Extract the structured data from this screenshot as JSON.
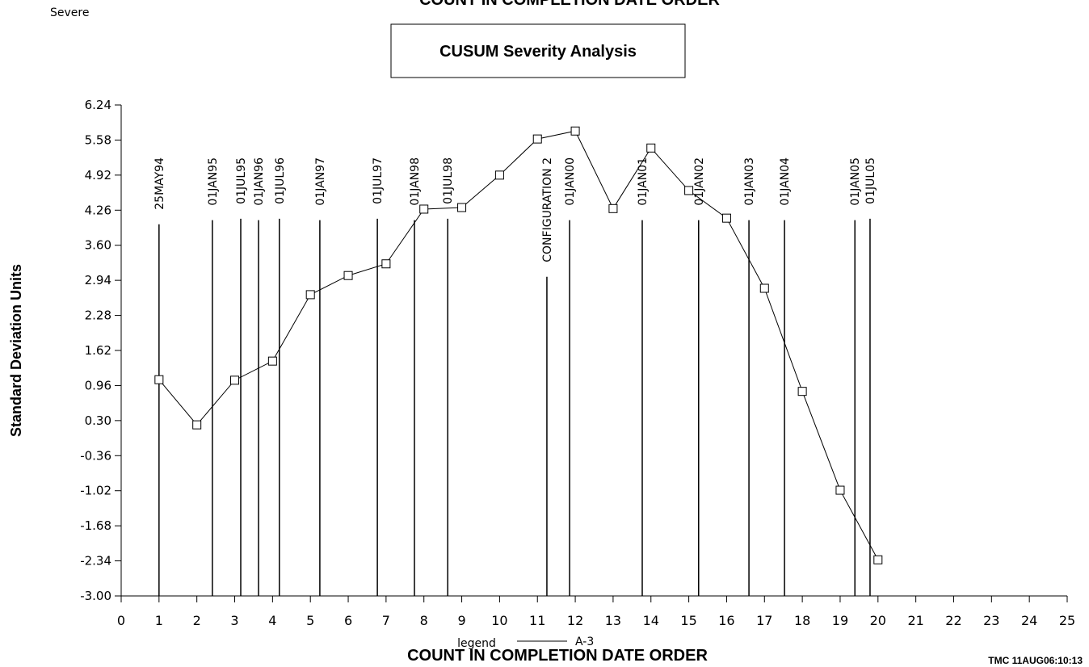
{
  "top_text": "COUNT IN COMPLETION DATE ORDER",
  "corner_label": "Severe",
  "footer": "TMC   11AUG06:10:13",
  "chart_data": {
    "type": "line",
    "title": "CUSUM Severity Analysis",
    "x_label": "COUNT IN COMPLETION DATE ORDER",
    "y_label": "Standard Deviation Units",
    "legend_title": "legend",
    "x": [
      1,
      2,
      3,
      4,
      5,
      6,
      7,
      8,
      9,
      10,
      11,
      12,
      13,
      14,
      15,
      16,
      17,
      18,
      19,
      20
    ],
    "series": [
      {
        "name": "A-3",
        "color": "#000000",
        "values": [
          1.07,
          0.22,
          1.06,
          1.42,
          2.67,
          3.03,
          3.25,
          4.28,
          4.31,
          4.92,
          5.6,
          5.75,
          4.29,
          5.43,
          4.63,
          4.11,
          2.79,
          0.85,
          -1.01,
          -2.32
        ]
      }
    ],
    "xlim": [
      0,
      25
    ],
    "xticks": [
      0,
      1,
      2,
      3,
      4,
      5,
      6,
      7,
      8,
      9,
      10,
      11,
      12,
      13,
      14,
      15,
      16,
      17,
      18,
      19,
      20,
      21,
      22,
      23,
      24,
      25
    ],
    "ylim": [
      -3.0,
      6.24
    ],
    "yticks": [
      6.24,
      5.58,
      4.92,
      4.26,
      {
        "value": 3.6,
        "label": "3.60"
      },
      2.94,
      2.28,
      1.62,
      0.96,
      {
        "value": 0.3,
        "label": "0.30"
      },
      -0.36,
      -1.02,
      -1.68,
      -2.34,
      {
        "value": -3,
        "label": "-3.00"
      }
    ],
    "reference_lines": [
      {
        "x": 1.0,
        "label": "25MAY94"
      },
      {
        "x": 2.41,
        "label": "01JAN95"
      },
      {
        "x": 3.16,
        "label": "01JUL95"
      },
      {
        "x": 3.63,
        "label": "01JAN96"
      },
      {
        "x": 4.18,
        "label": "01JUL96"
      },
      {
        "x": 5.25,
        "label": "01JAN97"
      },
      {
        "x": 6.77,
        "label": "01JUL97"
      },
      {
        "x": 7.75,
        "label": "01JAN98"
      },
      {
        "x": 8.63,
        "label": "01JUL98"
      },
      {
        "x": 11.25,
        "label": "CONFIGURATION 2"
      },
      {
        "x": 11.85,
        "label": "01JAN00"
      },
      {
        "x": 13.77,
        "label": "01JAN01"
      },
      {
        "x": 15.26,
        "label": "01JAN02"
      },
      {
        "x": 16.59,
        "label": "01JAN03"
      },
      {
        "x": 17.53,
        "label": "01JAN04"
      },
      {
        "x": 19.39,
        "label": "01JAN05"
      },
      {
        "x": 19.79,
        "label": "01JUL05"
      }
    ]
  }
}
